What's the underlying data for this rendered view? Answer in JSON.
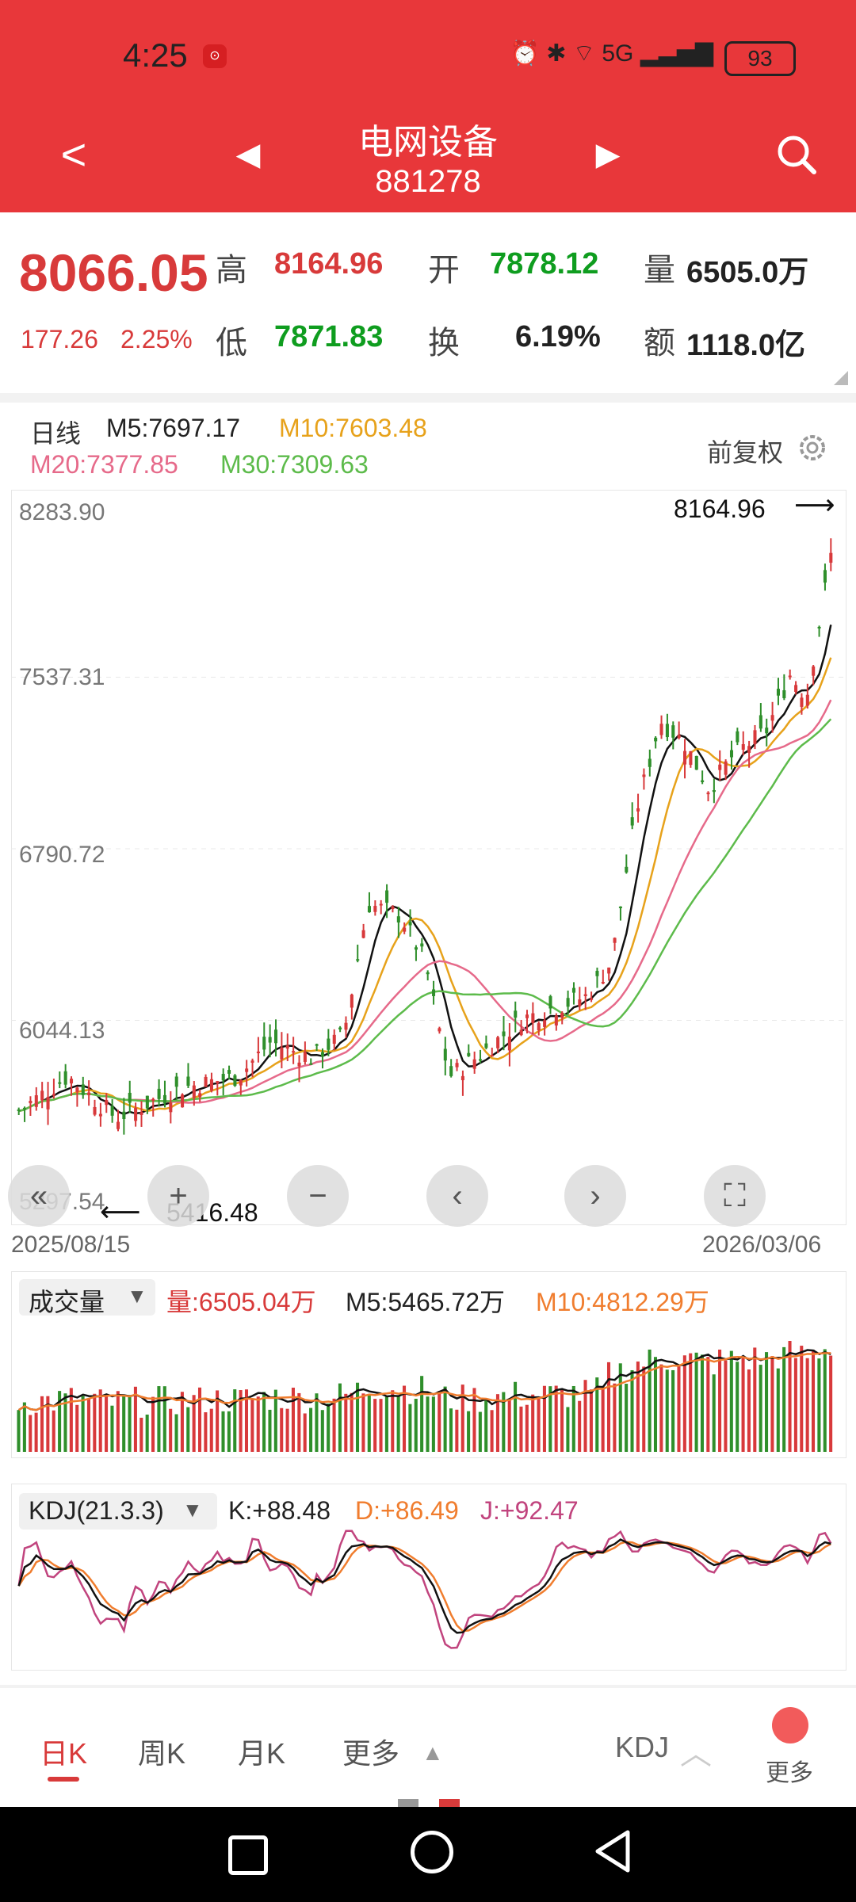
{
  "status": {
    "time": "4:25",
    "battery": "93",
    "network": "5G"
  },
  "header": {
    "back": "<",
    "prev": "◀",
    "next": "▶",
    "title": "电网设备",
    "code": "881278",
    "search": "search"
  },
  "quote": {
    "price": "8066.05",
    "change": "177.26",
    "change_pct": "2.25%",
    "high_label": "高",
    "high": "8164.96",
    "open_label": "开",
    "open": "7878.12",
    "vol_label": "量",
    "vol": "6505.0万",
    "low_label": "低",
    "low": "7871.83",
    "turn_label": "换",
    "turn": "6.19%",
    "amt_label": "额",
    "amt": "1118.0亿"
  },
  "kline": {
    "period": "日线",
    "m5": "M5:7697.17",
    "m10": "M10:7603.48",
    "m20": "M20:7377.85",
    "m30": "M30:7309.63",
    "adjust": "前复权",
    "y_ticks": [
      "8283.90",
      "7537.31",
      "6790.72",
      "6044.13",
      "5297.54"
    ],
    "max_mark": "8164.96",
    "min_mark": "5416.48",
    "date_start": "2025/08/15",
    "date_end": "2026/03/06"
  },
  "volume": {
    "indicator": "成交量",
    "vol": "量:6505.04万",
    "m5": "M5:5465.72万",
    "m10": "M10:4812.29万"
  },
  "kdj": {
    "indicator": "KDJ(21.3.3)",
    "k": "K:+88.48",
    "d": "D:+86.49",
    "j": "J:+92.47"
  },
  "tabs": {
    "day": "日K",
    "week": "周K",
    "month": "月K",
    "more": "更多",
    "kdj": "KDJ",
    "more2": "更多"
  },
  "chart_data": {
    "type": "bar",
    "title": "",
    "x_range": [
      "2025/08/15",
      "2026/03/06"
    ],
    "ylim": [
      5297.54,
      8283.9
    ],
    "y_ticks": [
      8283.9,
      7537.31,
      6790.72,
      6044.13,
      5297.54
    ],
    "high": 8164.96,
    "low": 5416.48,
    "last_close": 8066.05,
    "ma_last": {
      "M5": 7697.17,
      "M10": 7603.48,
      "M20": 7377.85,
      "M30": 7309.63
    }
  }
}
